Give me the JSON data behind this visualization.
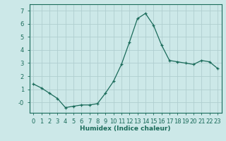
{
  "x": [
    0,
    1,
    2,
    3,
    4,
    5,
    6,
    7,
    8,
    9,
    10,
    11,
    12,
    13,
    14,
    15,
    16,
    17,
    18,
    19,
    20,
    21,
    22,
    23
  ],
  "y": [
    1.4,
    1.1,
    0.7,
    0.3,
    -0.4,
    -0.3,
    -0.2,
    -0.2,
    -0.1,
    0.7,
    1.6,
    2.9,
    4.6,
    6.4,
    6.8,
    5.9,
    4.4,
    3.2,
    3.1,
    3.0,
    2.9,
    3.2,
    3.1,
    2.6
  ],
  "line_color": "#1a6b5a",
  "marker": "+",
  "bg_color": "#cce8e8",
  "grid_color": "#b0ced0",
  "xlabel": "Humidex (Indice chaleur)",
  "ylim": [
    -0.8,
    7.5
  ],
  "xlim": [
    -0.5,
    23.5
  ],
  "yticks": [
    0,
    1,
    2,
    3,
    4,
    5,
    6,
    7
  ],
  "ytick_labels": [
    "-0",
    "1",
    "2",
    "3",
    "4",
    "5",
    "6",
    "7"
  ],
  "xticks": [
    0,
    1,
    2,
    3,
    4,
    5,
    6,
    7,
    8,
    9,
    10,
    11,
    12,
    13,
    14,
    15,
    16,
    17,
    18,
    19,
    20,
    21,
    22,
    23
  ]
}
